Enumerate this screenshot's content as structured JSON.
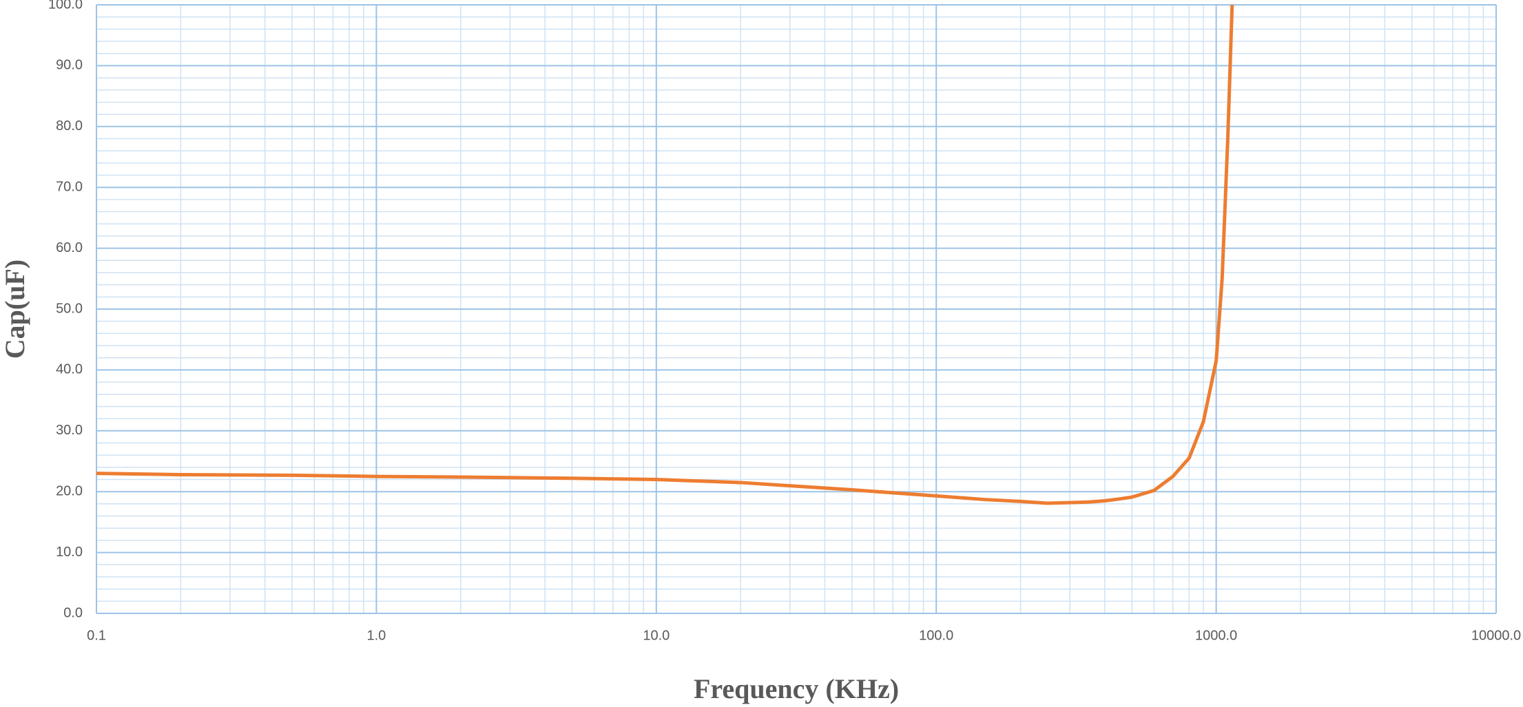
{
  "chart_data": {
    "type": "line",
    "xscale": "log",
    "grid": true,
    "x_label": "Frequency (KHz)",
    "y_label": "Cap(uF)",
    "x": [
      0.1,
      0.2,
      0.5,
      1,
      2,
      5,
      10,
      20,
      50,
      100,
      150,
      200,
      250,
      300,
      350,
      400,
      450,
      500,
      600,
      700,
      800,
      900,
      1000,
      1050,
      1100,
      1140
    ],
    "series": [
      {
        "color": "#ed7d31",
        "values": [
          23.0,
          22.8,
          22.7,
          22.5,
          22.4,
          22.2,
          22.0,
          21.5,
          20.3,
          19.3,
          18.7,
          18.4,
          18.1,
          18.2,
          18.3,
          18.5,
          18.8,
          19.1,
          20.2,
          22.5,
          25.5,
          31.5,
          41.5,
          55,
          78,
          100
        ]
      }
    ],
    "xlim": [
      0.1,
      10000
    ],
    "xticks": [
      0.1,
      {
        "value": 1,
        "label": "1.0"
      },
      {
        "value": 10,
        "label": "10.0"
      },
      {
        "value": 100,
        "label": "100.0"
      },
      {
        "value": 1000,
        "label": "1000.0"
      },
      {
        "value": 10000,
        "label": "10000.0"
      }
    ],
    "ylim": [
      0,
      100
    ],
    "yticks": [
      {
        "value": 0,
        "label": "0.0"
      },
      {
        "value": 10,
        "label": "10.0"
      },
      {
        "value": 20,
        "label": "20.0"
      },
      {
        "value": 30,
        "label": "30.0"
      },
      {
        "value": 40,
        "label": "40.0"
      },
      {
        "value": 50,
        "label": "50.0"
      },
      {
        "value": 60,
        "label": "60.0"
      },
      {
        "value": 70,
        "label": "70.0"
      },
      {
        "value": 80,
        "label": "80.0"
      },
      {
        "value": 90,
        "label": "90.0"
      },
      {
        "value": 100,
        "label": "100.0"
      }
    ]
  }
}
